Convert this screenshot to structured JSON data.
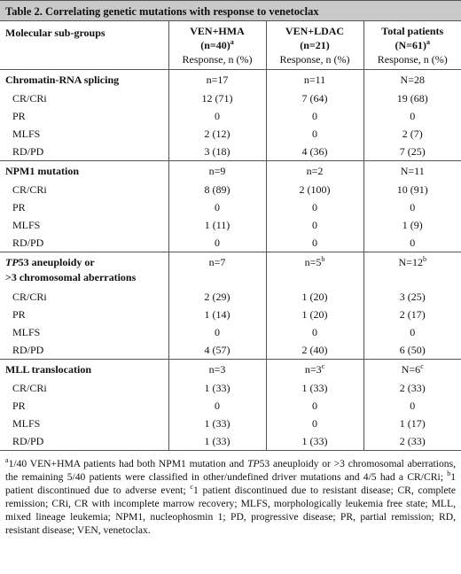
{
  "title": "Table 2. Correlating genetic mutations with response to venetoclax",
  "header": {
    "col0": "Molecular sub-groups",
    "col1_line1": "VEN+HMA",
    "col1_line2": "(n=40)",
    "col1_sup": "a",
    "col1_line3": "Response, n (%)",
    "col2_line1": "VEN+LDAC",
    "col2_line2": "(n=21)",
    "col2_line3": "Response, n (%)",
    "col3_line1": "Total patients",
    "col3_line2": "(N=61)",
    "col3_sup": "a",
    "col3_line3": "Response, n (%)"
  },
  "groups": [
    {
      "label": "Chromatin-RNA splicing",
      "n1": "n=17",
      "n2": "n=11",
      "n3": "N=28",
      "rows": [
        {
          "label": "CR/CRi",
          "v1": "12 (71)",
          "v2": "7 (64)",
          "v3": "19 (68)"
        },
        {
          "label": "PR",
          "v1": "0",
          "v2": "0",
          "v3": "0"
        },
        {
          "label": "MLFS",
          "v1": "2 (12)",
          "v2": "0",
          "v3": "2 (7)"
        },
        {
          "label": "RD/PD",
          "v1": "3 (18)",
          "v2": "4 (36)",
          "v3": "7 (25)"
        }
      ]
    },
    {
      "label": "NPM1 mutation",
      "n1": "n=9",
      "n2": "n=2",
      "n3": "N=11",
      "rows": [
        {
          "label": "CR/CRi",
          "v1": "8 (89)",
          "v2": "2 (100)",
          "v3": "10 (91)"
        },
        {
          "label": "PR",
          "v1": "0",
          "v2": "0",
          "v3": "0"
        },
        {
          "label": "MLFS",
          "v1": "1 (11)",
          "v2": "0",
          "v3": "1 (9)"
        },
        {
          "label": "RD/PD",
          "v1": "0",
          "v2": "0",
          "v3": "0"
        }
      ]
    },
    {
      "label_italic": "TP",
      "label_rest": "53 aneuploidy or",
      "label_line2": ">3 chromosomal aberrations",
      "n1": "n=7",
      "n2": "n=5",
      "n2_sup": "b",
      "n3": "N=12",
      "n3_sup": "b",
      "rows": [
        {
          "label": "CR/CRi",
          "v1": "2 (29)",
          "v2": "1 (20)",
          "v3": "3 (25)"
        },
        {
          "label": "PR",
          "v1": "1 (14)",
          "v2": "1 (20)",
          "v3": "2 (17)"
        },
        {
          "label": "MLFS",
          "v1": "0",
          "v2": "0",
          "v3": "0"
        },
        {
          "label": "RD/PD",
          "v1": "4 (57)",
          "v2": "2 (40)",
          "v3": "6 (50)"
        }
      ]
    },
    {
      "label": "MLL translocation",
      "n1": "n=3",
      "n2": "n=3",
      "n2_sup": "c",
      "n3": "N=6",
      "n3_sup": "c",
      "rows": [
        {
          "label": "CR/CRi",
          "v1": "1 (33)",
          "v2": "1 (33)",
          "v3": "2 (33)"
        },
        {
          "label": "PR",
          "v1": "0",
          "v2": "0",
          "v3": "0"
        },
        {
          "label": "MLFS",
          "v1": "1 (33)",
          "v2": "0",
          "v3": "1 (17)"
        },
        {
          "label": "RD/PD",
          "v1": "1 (33)",
          "v2": "1 (33)",
          "v3": "2 (33)"
        }
      ]
    }
  ],
  "footnote": {
    "sup_a": "a",
    "a_text_1": "1/40 VEN+HMA patients had both NPM1 mutation and ",
    "a_italic": "TP",
    "a_text_2": "53 aneuploidy or >3 chromosomal aberrations, the remaining 5/40 patients were classified in other/undefined driver mutations and 4/5 had a CR/CRi; ",
    "sup_b": "b",
    "b_text": "1 patient discontinued due to adverse event; ",
    "sup_c": "c",
    "c_text": "1 patient discontinued due to resistant disease; CR, complete remission; CRi, CR with incomplete marrow recovery; MLFS, morphologically leukemia free state; MLL, mixed lineage leukemia; NPM1, nucleophosmin 1; PD, progressive disease; PR, partial remission; RD, resistant disease; VEN, venetoclax."
  }
}
